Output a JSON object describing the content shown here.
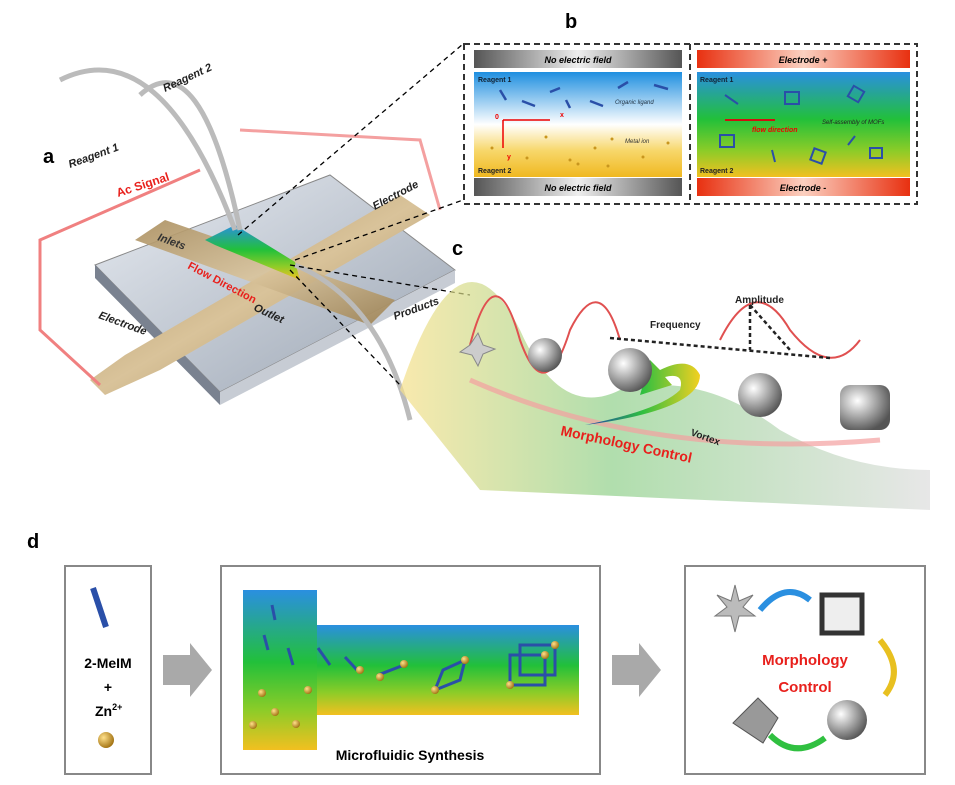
{
  "panel_labels": {
    "a": "a",
    "b": "b",
    "c": "c",
    "d": "d"
  },
  "panel_a": {
    "reagent1": "Reagent 1",
    "reagent2": "Reagent 2",
    "ac_signal": "Ac Signal",
    "electrode_top": "Electrode",
    "electrode_bottom": "Electrode",
    "inlets": "Inlets",
    "flow_direction": "Flow Direction",
    "outlet": "Outlet",
    "products": "Products"
  },
  "panel_b": {
    "left": {
      "top_bar": "No electric field",
      "bottom_bar": "No electric field",
      "reagent1": "Reagent 1",
      "reagent2": "Reagent 2",
      "organic_ligand": "Organic ligand",
      "metal_ion": "Metal ion",
      "origin": "0",
      "x_axis": "x",
      "y_axis": "y"
    },
    "right": {
      "top_bar": "Electrode +",
      "bottom_bar": "Electrode -",
      "reagent1": "Reagent 1",
      "reagent2": "Reagent 2",
      "flow_direction": "flow direction",
      "self_assembly": "Self-assembly of MOFs"
    }
  },
  "panel_c": {
    "amplitude": "Amplitude",
    "frequency": "Frequency",
    "vortex": "Vortex",
    "morphology_control": "Morphology Control"
  },
  "panel_d": {
    "ligand": "2-MeIM",
    "plus": "+",
    "zn": "Zn",
    "zn_sup": "2+",
    "synthesis": "Microfluidic Synthesis",
    "morph1": "Morphology",
    "morph2": "Control"
  },
  "colors": {
    "red_label": "#e8201c",
    "blue_ligand": "#2a4fa8",
    "zn_gold": "#c8961e"
  }
}
